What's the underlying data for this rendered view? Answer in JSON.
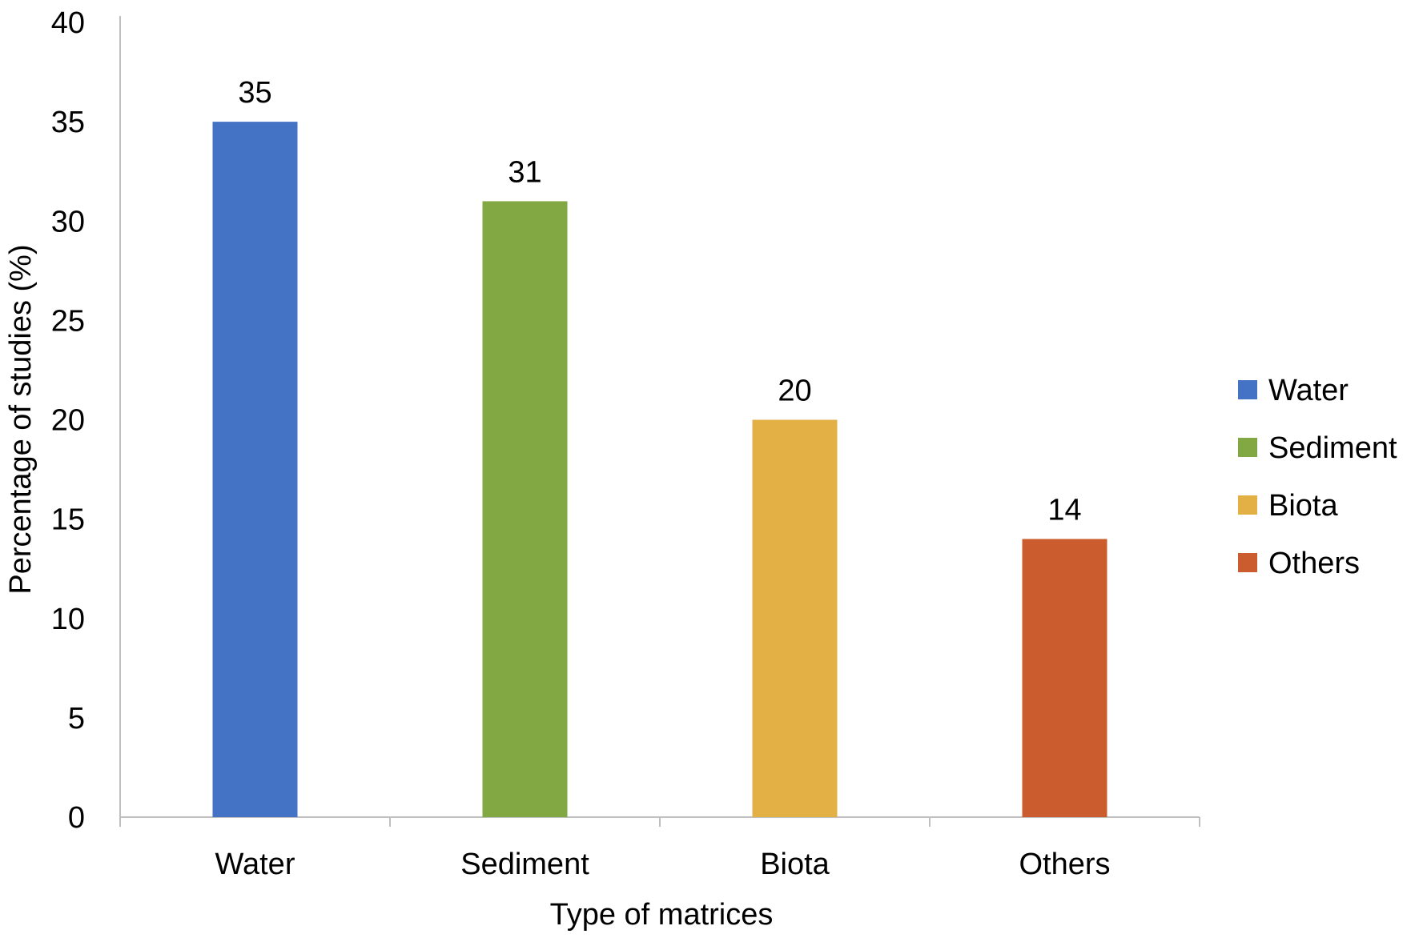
{
  "chart_data": {
    "type": "bar",
    "categories": [
      "Water",
      "Sediment",
      "Biota",
      "Others"
    ],
    "values": [
      35,
      31,
      20,
      14
    ],
    "colors": [
      "#4472C4",
      "#82A844",
      "#E3B045",
      "#CB5C2D"
    ],
    "data_labels": [
      "35",
      "31",
      "20",
      "14"
    ],
    "title": "",
    "xlabel": "Type of matrices",
    "ylabel": "Percentage of studies (%)",
    "ylim": [
      0,
      40
    ],
    "yticks": [
      0,
      5,
      10,
      15,
      20,
      25,
      30,
      35,
      40
    ],
    "grid": false,
    "legend": {
      "placement": "right",
      "entries": [
        "Water",
        "Sediment",
        "Biota",
        "Others"
      ]
    },
    "axis_color": "#BFBFBF"
  }
}
